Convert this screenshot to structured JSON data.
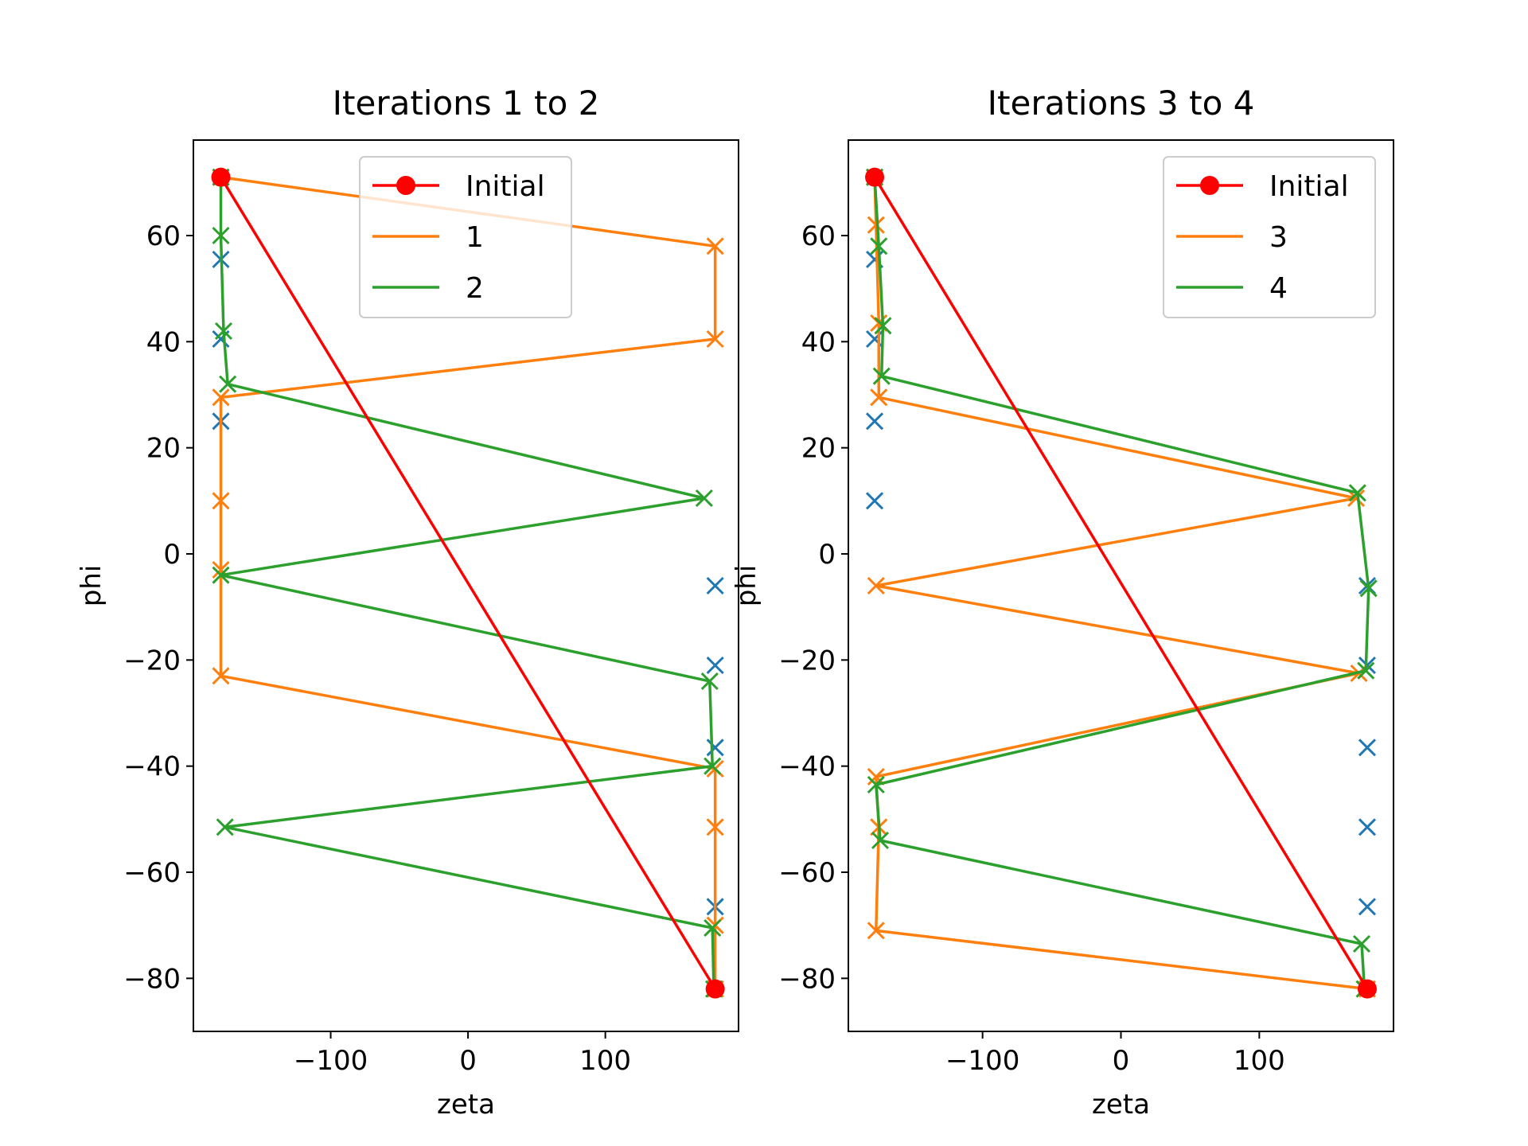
{
  "colors": {
    "initial": "#ff0000",
    "blue": "#1f77b4",
    "orange": "#ff7f0e",
    "green": "#2ca02c"
  },
  "chart_data": [
    {
      "type": "line",
      "title": "Iterations 1 to 2",
      "xlabel": "zeta",
      "ylabel": "phi",
      "xlim": [
        -200,
        197
      ],
      "ylim": [
        -90,
        78
      ],
      "xticks": [
        -100,
        0,
        100
      ],
      "yticks": [
        -80,
        -60,
        -40,
        -20,
        0,
        20,
        40,
        60
      ],
      "grid": false,
      "legend_position": "top-center",
      "series": [
        {
          "name": "Initial",
          "color": "initial",
          "marker": "o",
          "x": [
            -180,
            180
          ],
          "y": [
            71,
            -82
          ]
        },
        {
          "name": "",
          "color": "blue",
          "marker": "x",
          "linestyle": "none",
          "x": [
            -180,
            -180,
            -180,
            180,
            180,
            180,
            180
          ],
          "y": [
            55.5,
            40.5,
            25,
            -6,
            -21,
            -36.5,
            -66.5
          ]
        },
        {
          "name": "1",
          "color": "orange",
          "marker": "x",
          "x": [
            -180,
            180,
            180,
            -180,
            -180,
            -180,
            -180,
            180,
            180,
            180,
            180
          ],
          "y": [
            71,
            58,
            40.5,
            29.5,
            10,
            -3,
            -23,
            -40.5,
            -51.5,
            -70,
            -82
          ]
        },
        {
          "name": "2",
          "color": "green",
          "marker": "x",
          "x": [
            -180,
            -180,
            -178,
            -175,
            172,
            -180,
            176,
            178,
            -177,
            178,
            179
          ],
          "y": [
            71,
            60,
            42,
            32,
            10.5,
            -4,
            -24,
            -40,
            -51.5,
            -70.5,
            -82
          ]
        }
      ]
    },
    {
      "type": "line",
      "title": "Iterations 3 to 4",
      "xlabel": "zeta",
      "ylabel": "phi",
      "xlim": [
        -197,
        197
      ],
      "ylim": [
        -90,
        78
      ],
      "xticks": [
        -100,
        0,
        100
      ],
      "yticks": [
        -80,
        -60,
        -40,
        -20,
        0,
        20,
        40,
        60
      ],
      "grid": false,
      "legend_position": "top-right",
      "series": [
        {
          "name": "Initial",
          "color": "initial",
          "marker": "o",
          "x": [
            -178,
            178
          ],
          "y": [
            71,
            -82
          ]
        },
        {
          "name": "",
          "color": "blue",
          "marker": "x",
          "linestyle": "none",
          "x": [
            -178,
            -178,
            -178,
            -178,
            178,
            178,
            178,
            178,
            178
          ],
          "y": [
            55.5,
            40.5,
            25,
            10,
            -6,
            -21,
            -36.5,
            -51.5,
            -66.5
          ]
        },
        {
          "name": "3",
          "color": "orange",
          "marker": "x",
          "x": [
            -178,
            -177,
            -175,
            -175,
            170,
            -177,
            172,
            -177,
            -175,
            -177,
            178
          ],
          "y": [
            71,
            62,
            43.5,
            29.5,
            10.5,
            -6,
            -22.5,
            -42,
            -51.5,
            -71,
            -82
          ]
        },
        {
          "name": "4",
          "color": "green",
          "marker": "x",
          "x": [
            -178,
            -175,
            -172,
            -173,
            171,
            179,
            177,
            -177,
            -174,
            174,
            176
          ],
          "y": [
            71,
            58,
            43,
            33.5,
            11.5,
            -6.5,
            -22,
            -43.5,
            -54,
            -73.5,
            -82
          ]
        }
      ]
    }
  ]
}
